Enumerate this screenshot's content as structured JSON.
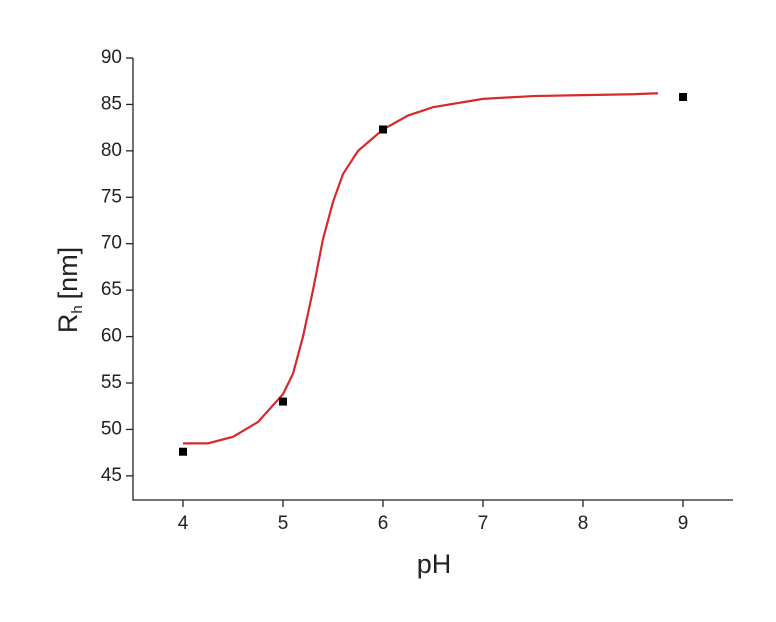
{
  "chart_data": {
    "type": "scatter",
    "xlabel": "pH",
    "ylabel_main": "R",
    "ylabel_sub": "h",
    "ylabel_unit": "[nm]",
    "xlim": [
      3.5,
      9.5
    ],
    "xticks": [
      4,
      5,
      6,
      7,
      8,
      9
    ],
    "ylim": [
      42.4,
      90
    ],
    "yticks": [
      45,
      50,
      55,
      60,
      65,
      70,
      75,
      80,
      85,
      90
    ],
    "points": {
      "color": "#000000",
      "x": [
        4,
        5,
        6,
        9
      ],
      "y": [
        47.6,
        53,
        82.3,
        85.8
      ]
    },
    "fit": {
      "color": "#d62a2a",
      "x": [
        4.0,
        4.25,
        4.5,
        4.75,
        5.0,
        5.1,
        5.2,
        5.3,
        5.4,
        5.5,
        5.6,
        5.75,
        6.0,
        6.25,
        6.5,
        7.0,
        7.5,
        8.0,
        8.5,
        8.75
      ],
      "y": [
        48.5,
        48.5,
        49.2,
        50.8,
        53.8,
        56,
        60,
        65,
        70.5,
        74.5,
        77.5,
        80,
        82.3,
        83.8,
        84.7,
        85.6,
        85.9,
        86.0,
        86.1,
        86.2
      ]
    }
  }
}
